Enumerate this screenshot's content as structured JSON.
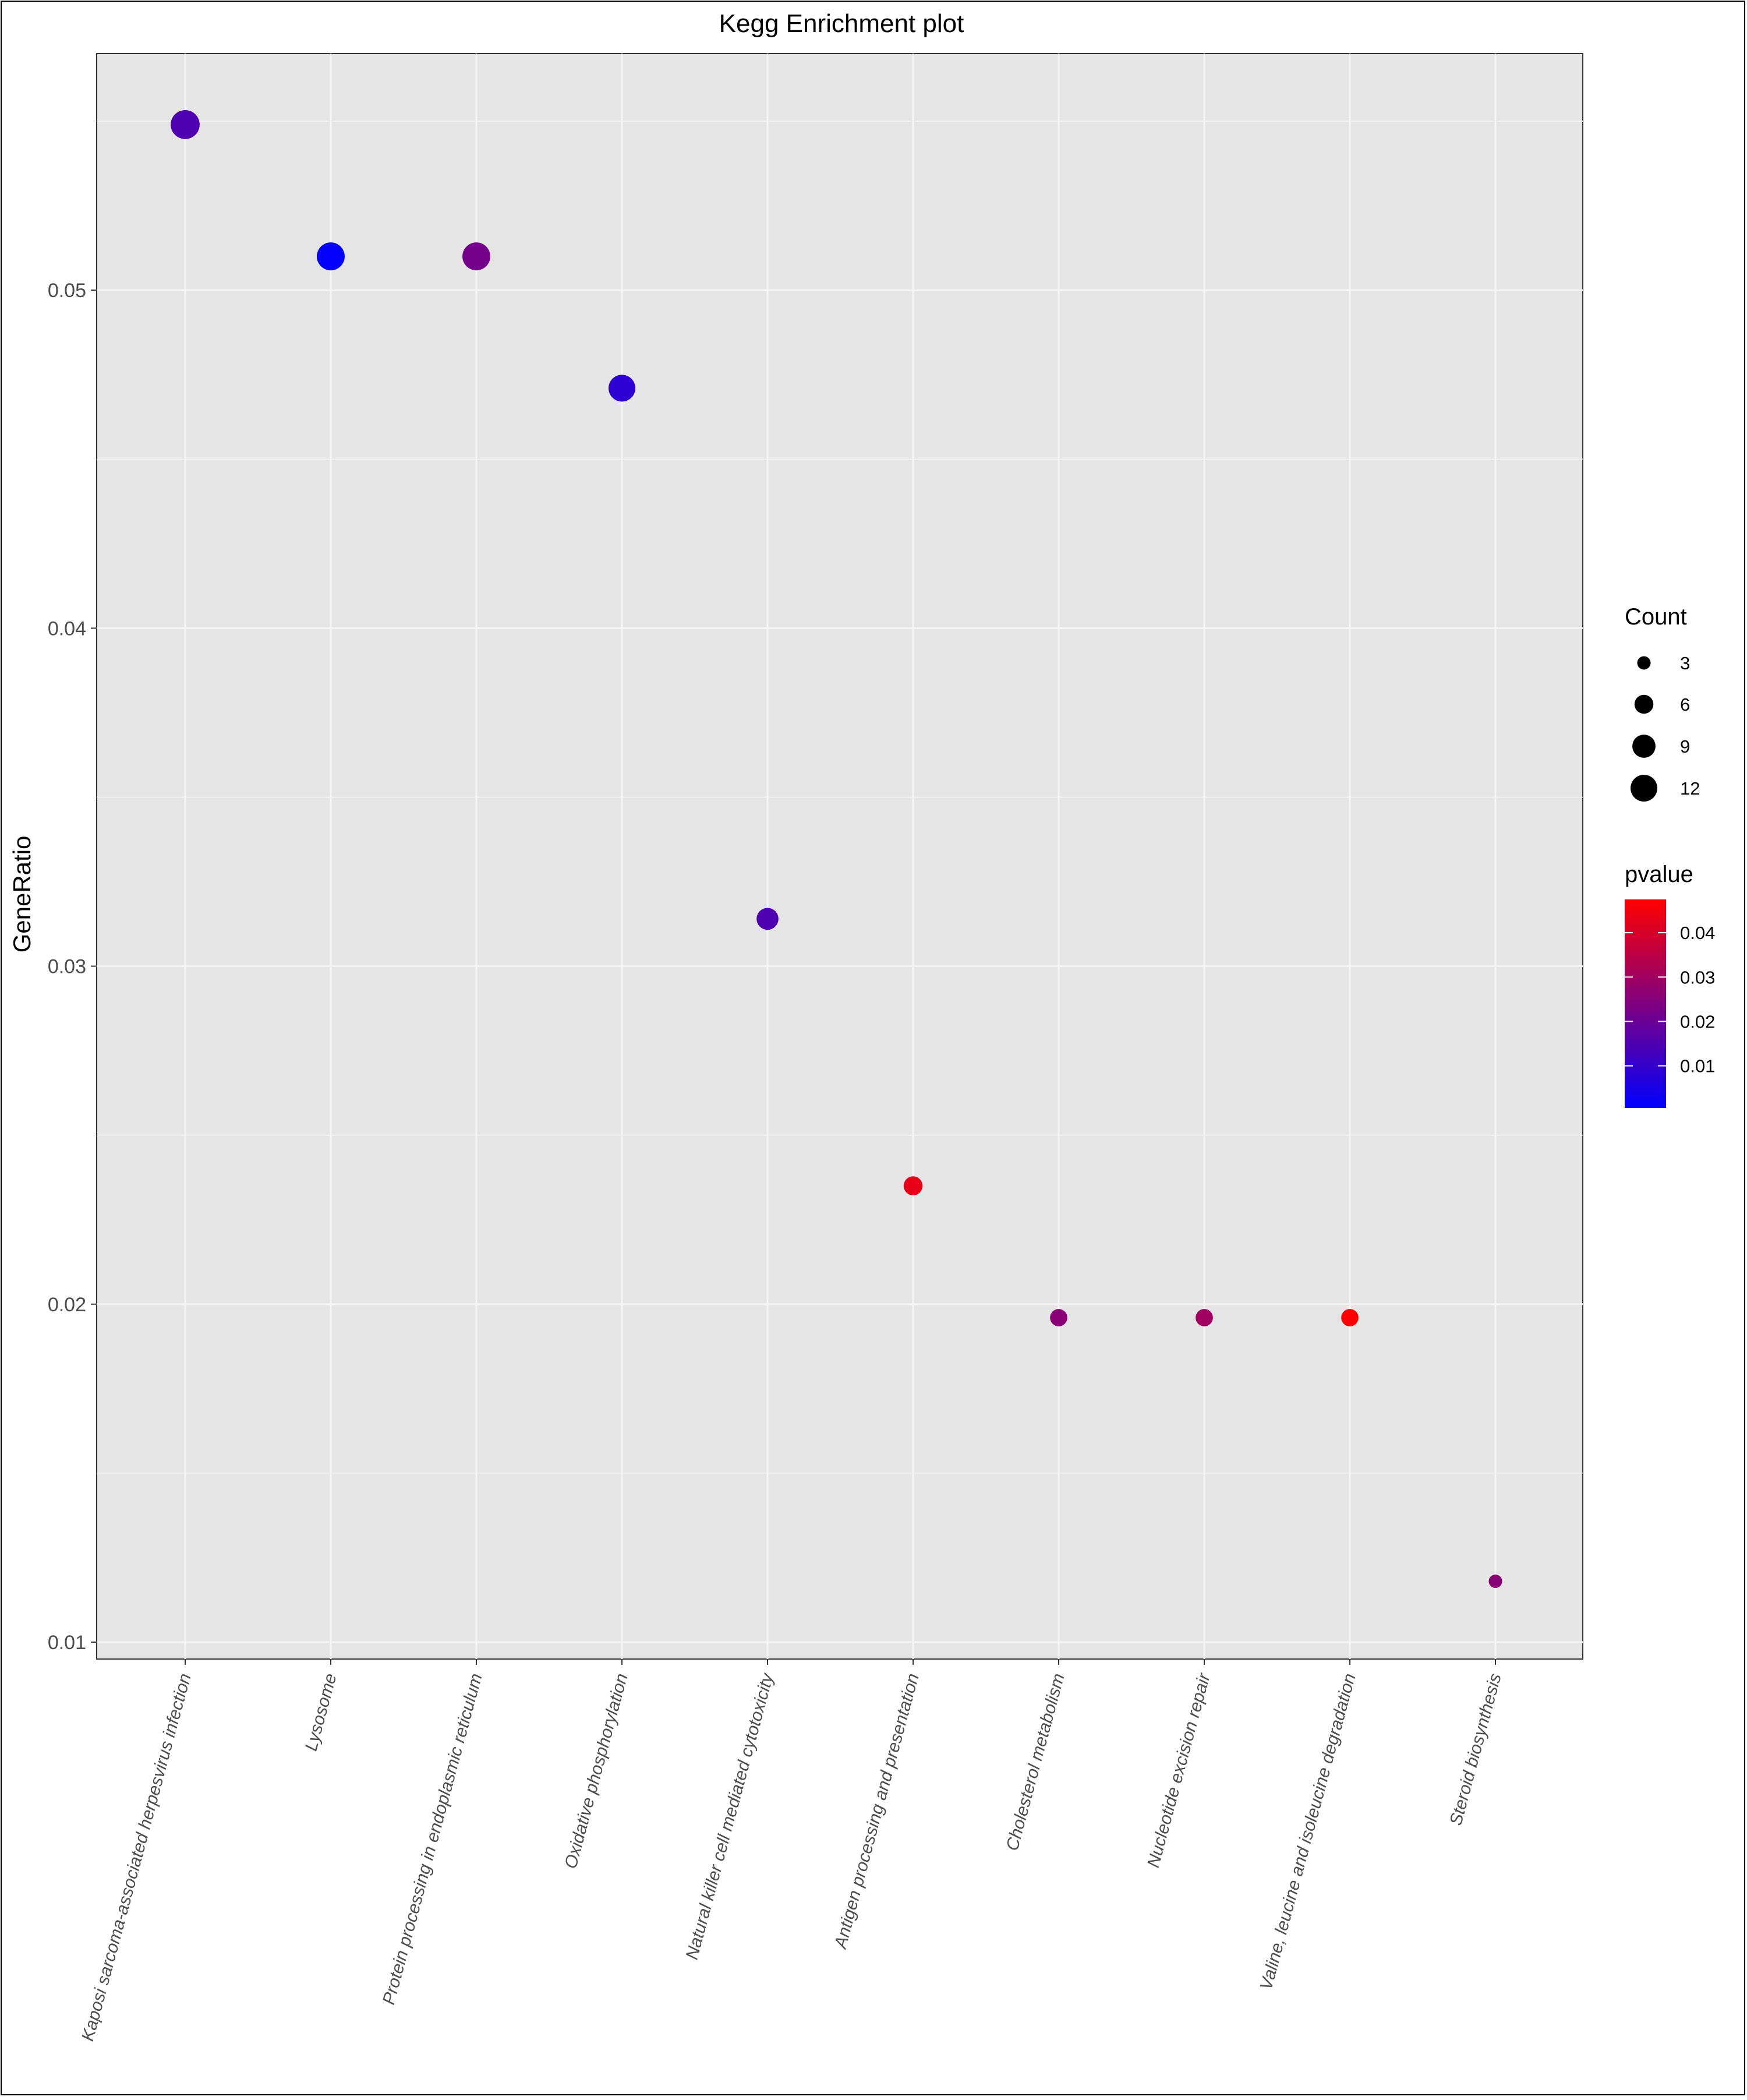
{
  "chart_data": {
    "type": "scatter",
    "title": "Kegg Enrichment plot",
    "xlabel": "",
    "ylabel": "GeneRatio",
    "ylim": [
      0.0095,
      0.057
    ],
    "yticks": [
      0.01,
      0.02,
      0.03,
      0.04,
      0.05
    ],
    "ytick_labels": [
      "0.01",
      "0.02",
      "0.03",
      "0.04",
      "0.05"
    ],
    "grid": true,
    "categories": [
      "Kaposi sarcoma-associated herpesvirus infection",
      "Lysosome",
      "Protein processing in endoplasmic reticulum",
      "Oxidative phosphorylation",
      "Natural killer cell mediated cytotoxicity",
      "Antigen processing and presentation",
      "Cholesterol metabolism",
      "Nucleotide excision repair",
      "Valine, leucine and isoleucine degradation",
      "Steroid biosynthesis"
    ],
    "points": [
      {
        "category": "Kaposi sarcoma-associated herpesvirus infection",
        "gene_ratio": 0.0549,
        "count": 14,
        "pvalue": 0.015
      },
      {
        "category": "Lysosome",
        "gene_ratio": 0.051,
        "count": 13,
        "pvalue": 0.001
      },
      {
        "category": "Protein processing in endoplasmic reticulum",
        "gene_ratio": 0.051,
        "count": 13,
        "pvalue": 0.022
      },
      {
        "category": "Oxidative phosphorylation",
        "gene_ratio": 0.0471,
        "count": 12,
        "pvalue": 0.009
      },
      {
        "category": "Natural killer cell mediated cytotoxicity",
        "gene_ratio": 0.0314,
        "count": 8,
        "pvalue": 0.015
      },
      {
        "category": "Antigen processing and presentation",
        "gene_ratio": 0.0235,
        "count": 6,
        "pvalue": 0.043
      },
      {
        "category": "Cholesterol metabolism",
        "gene_ratio": 0.0196,
        "count": 5,
        "pvalue": 0.026
      },
      {
        "category": "Nucleotide excision repair",
        "gene_ratio": 0.0196,
        "count": 5,
        "pvalue": 0.03
      },
      {
        "category": "Valine, leucine and isoleucine degradation",
        "gene_ratio": 0.0196,
        "count": 5,
        "pvalue": 0.047
      },
      {
        "category": "Steroid biosynthesis",
        "gene_ratio": 0.0118,
        "count": 3,
        "pvalue": 0.026
      }
    ],
    "size_legend": {
      "title": "Count",
      "values": [
        3,
        6,
        9,
        12
      ],
      "labels": [
        "3",
        "6",
        "9",
        "12"
      ]
    },
    "color_legend": {
      "title": "pvalue",
      "low_color": "#0000FF",
      "high_color": "#FF0000",
      "range": [
        0.0005,
        0.0475
      ],
      "ticks": [
        0.01,
        0.02,
        0.03,
        0.04
      ],
      "labels": [
        "0.01",
        "0.02",
        "0.03",
        "0.04"
      ]
    },
    "legend_placement": "right",
    "panel_background": "#E5E5E5",
    "grid_color": "#F5F5F5"
  }
}
